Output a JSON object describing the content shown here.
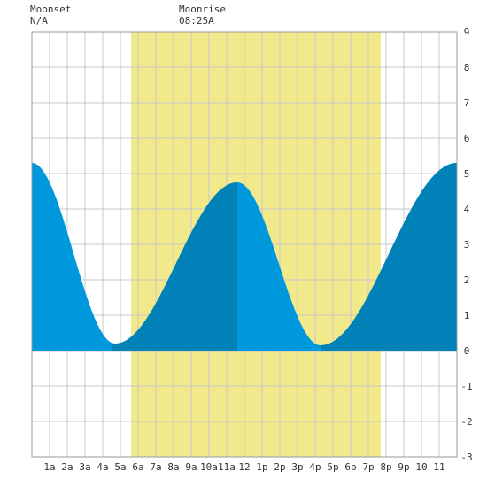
{
  "header": {
    "moonset": {
      "label": "Moonset",
      "time": "N/A"
    },
    "moonrise": {
      "label": "Moonrise",
      "time": "08:25A"
    }
  },
  "colors": {
    "daylight": "#f2e98a",
    "tide_rising": "#0098dc",
    "tide_falling": "#0081b8",
    "grid": "#c8c8c8",
    "background": "#ffffff"
  },
  "chart_data": {
    "type": "area",
    "title": "",
    "xlabel": "",
    "ylabel": "",
    "xlim": [
      0,
      24
    ],
    "ylim": [
      -3,
      9
    ],
    "x_tick_labels": [
      "1a",
      "2a",
      "3a",
      "4a",
      "5a",
      "6a",
      "7a",
      "8a",
      "9a",
      "10a",
      "11a",
      "12",
      "1p",
      "2p",
      "3p",
      "4p",
      "5p",
      "6p",
      "7p",
      "8p",
      "9p",
      "10",
      "11"
    ],
    "y_ticks": [
      -3,
      -2,
      -1,
      0,
      1,
      2,
      3,
      4,
      5,
      6,
      7,
      8,
      9
    ],
    "daylight": {
      "start_hour": 5.6,
      "end_hour": 19.7
    },
    "dark_band_ranges": [
      [
        4.5,
        11.6
      ],
      [
        16.3,
        24
      ]
    ],
    "tide_extremes": [
      {
        "time_hour": 0.0,
        "height": 5.3
      },
      {
        "time_hour": 4.7,
        "height": 0.2
      },
      {
        "time_hour": 11.6,
        "height": 4.75
      },
      {
        "time_hour": 16.3,
        "height": 0.15
      },
      {
        "time_hour": 24.0,
        "height": 5.3
      }
    ],
    "grid": true
  }
}
